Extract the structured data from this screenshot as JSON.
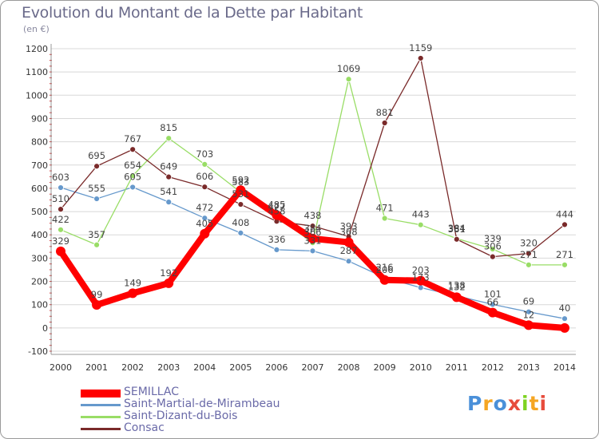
{
  "title": "Evolution du Montant de la Dette par Habitant",
  "subtitle": "(en €)",
  "brand": {
    "text": "Proxiti",
    "colors": [
      "#4a90d9",
      "#f5a623",
      "#4a90d9",
      "#e74c3c",
      "#7ed321",
      "#f5a623",
      "#e74c3c"
    ]
  },
  "colors": {
    "background": "#ffffff",
    "grid": "#d8d8d8",
    "axis_text": "#333333",
    "frame": "#9a9a9a"
  },
  "chart_data": {
    "type": "line",
    "categories": [
      "2000",
      "2001",
      "2002",
      "2003",
      "2004",
      "2005",
      "2006",
      "2007",
      "2008",
      "2009",
      "2010",
      "2011",
      "2012",
      "2013",
      "2014"
    ],
    "ylim": [
      -100,
      1200
    ],
    "yticks": [
      -100,
      0,
      100,
      200,
      300,
      400,
      500,
      600,
      700,
      800,
      900,
      1000,
      1100,
      1200
    ],
    "grid": true,
    "legend_position": "bottom-left",
    "series": [
      {
        "name": "SEMILLAC",
        "color": "#ff0000",
        "width": 8,
        "marker": 6,
        "values": [
          329,
          99,
          149,
          192,
          405,
          592,
          485,
          384,
          368,
          206,
          203,
          132,
          66,
          12,
          0
        ],
        "labels": [
          "329",
          "99",
          "149",
          "192",
          "405",
          "592",
          "485",
          "384",
          "368",
          "206",
          "203",
          "132",
          "66",
          "12",
          ""
        ]
      },
      {
        "name": "Saint-Martial-de-Mirambeau",
        "color": "#6699cc",
        "width": 1.3,
        "marker": 3.5,
        "values": [
          603,
          555,
          605,
          541,
          472,
          408,
          336,
          331,
          287,
          216,
          173,
          138,
          101,
          69,
          40
        ],
        "labels": [
          "603",
          "555",
          "605",
          "541",
          "472",
          "408",
          "336",
          "331",
          "287",
          "216",
          "173",
          "138",
          "101",
          "69",
          "40"
        ]
      },
      {
        "name": "Saint-Dizant-du-Bois",
        "color": "#99dd66",
        "width": 1.3,
        "marker": 3.5,
        "values": [
          422,
          357,
          654,
          815,
          703,
          583,
          477,
          366,
          1069,
          471,
          443,
          384,
          339,
          271,
          271
        ],
        "labels": [
          "422",
          "357",
          "654",
          "815",
          "703",
          "583",
          "477",
          "366",
          "1069",
          "471",
          "443",
          "384",
          "339",
          "271",
          "271"
        ]
      },
      {
        "name": "Consac",
        "color": "#7a2a2a",
        "width": 1.3,
        "marker": 3.5,
        "values": [
          510,
          695,
          767,
          649,
          606,
          531,
          458,
          438,
          393,
          881,
          1159,
          381,
          306,
          320,
          444
        ],
        "labels": [
          "510",
          "695",
          "767",
          "649",
          "606",
          "531",
          "458",
          "438",
          "393",
          "881",
          "1159",
          "381",
          "306",
          "320",
          "444"
        ]
      }
    ]
  }
}
